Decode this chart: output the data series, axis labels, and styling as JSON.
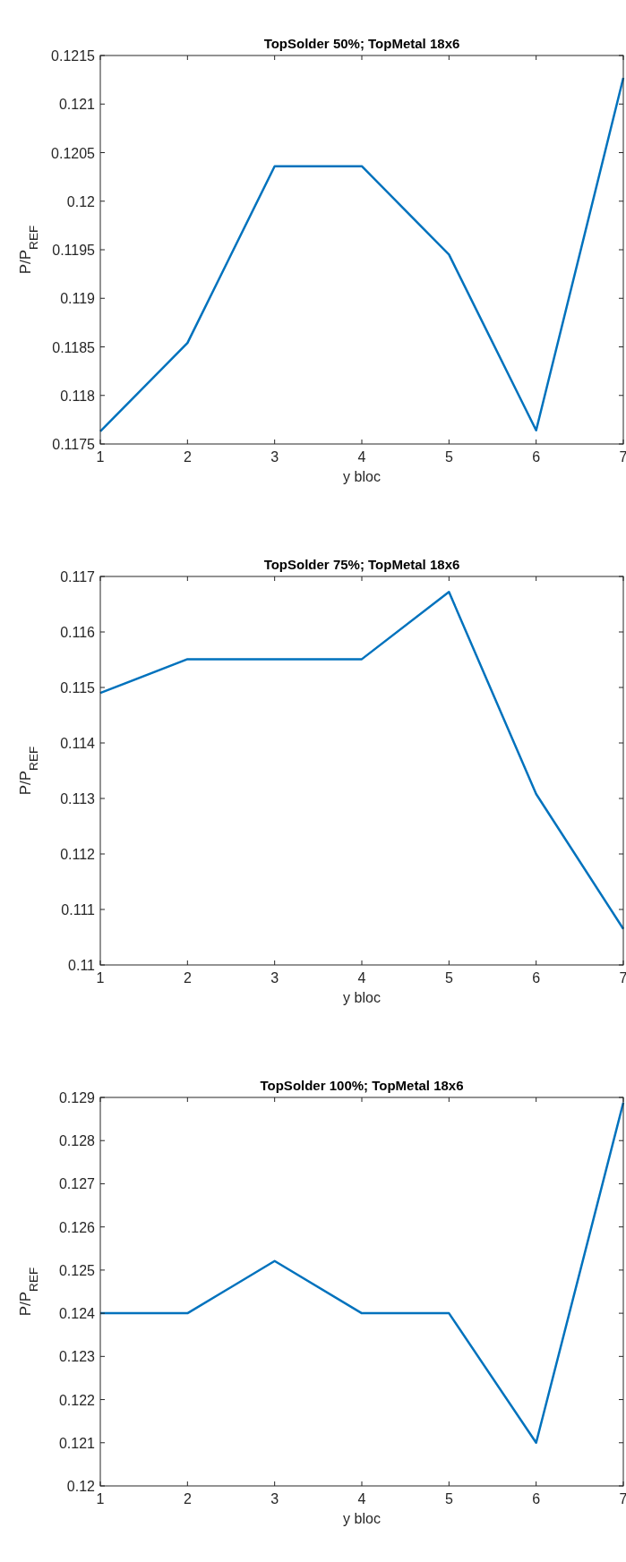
{
  "chart_data": [
    {
      "type": "line",
      "title": "TopSolder 50%; TopMetal 18x6",
      "xlabel": "y bloc",
      "ylabel": "P/P$_{REF}$",
      "x": [
        1,
        2,
        3,
        4,
        5,
        6,
        7
      ],
      "xlim": [
        1,
        7
      ],
      "xticks": [
        1,
        2,
        3,
        4,
        5,
        6,
        7
      ],
      "ylim": [
        0.1175,
        0.1215
      ],
      "yticks": [
        0.1175,
        0.118,
        0.1185,
        0.119,
        0.1195,
        0.12,
        0.1205,
        0.121,
        0.1215
      ],
      "grid": false,
      "marker": "none",
      "line_style": "solid",
      "series": [
        {
          "color": "#0072bd",
          "values": [
            0.11763,
            0.11854,
            0.12036,
            0.12036,
            0.11945,
            0.11764,
            0.12127
          ]
        }
      ]
    },
    {
      "type": "line",
      "title": "TopSolder 75%; TopMetal 18x6",
      "xlabel": "y bloc",
      "ylabel": "P/P$_{REF}$",
      "x": [
        1,
        2,
        3,
        4,
        5,
        6,
        7
      ],
      "xlim": [
        1,
        7
      ],
      "xticks": [
        1,
        2,
        3,
        4,
        5,
        6,
        7
      ],
      "ylim": [
        0.11,
        0.117
      ],
      "yticks": [
        0.11,
        0.111,
        0.112,
        0.113,
        0.114,
        0.115,
        0.116,
        0.117
      ],
      "grid": false,
      "marker": "none",
      "line_style": "solid",
      "series": [
        {
          "color": "#0072bd",
          "values": [
            0.1149,
            0.11551,
            0.11551,
            0.11551,
            0.11672,
            0.11308,
            0.11065
          ]
        }
      ]
    },
    {
      "type": "line",
      "title": "TopSolder 100%; TopMetal 18x6",
      "xlabel": "y bloc",
      "ylabel": "P/P$_{REF}$",
      "x": [
        1,
        2,
        3,
        4,
        5,
        6,
        7
      ],
      "xlim": [
        1,
        7
      ],
      "xticks": [
        1,
        2,
        3,
        4,
        5,
        6,
        7
      ],
      "ylim": [
        0.12,
        0.129
      ],
      "yticks": [
        0.12,
        0.121,
        0.122,
        0.123,
        0.124,
        0.125,
        0.126,
        0.127,
        0.128,
        0.129
      ],
      "grid": false,
      "marker": "none",
      "line_style": "solid",
      "series": [
        {
          "color": "#0072bd",
          "values": [
            0.124,
            0.124,
            0.12521,
            0.124,
            0.124,
            0.121,
            0.12888
          ]
        }
      ]
    }
  ]
}
